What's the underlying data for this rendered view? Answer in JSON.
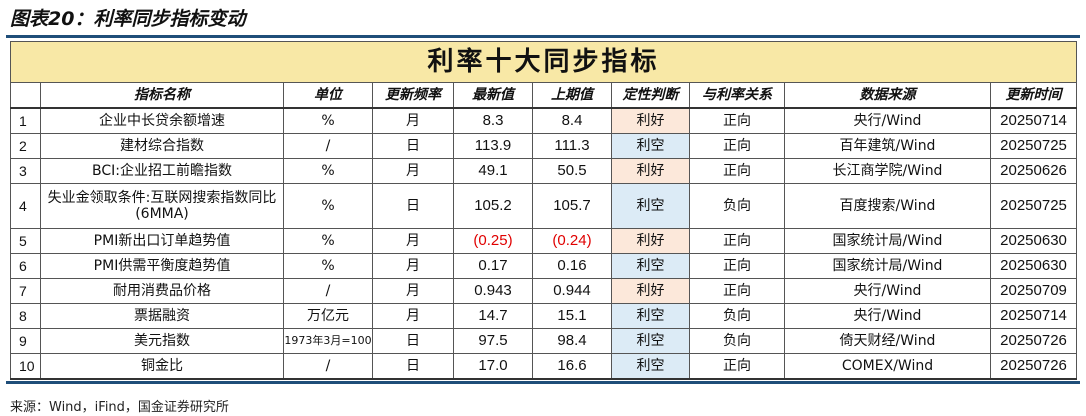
{
  "caption": "图表20：利率同步指标变动",
  "table_title": "利率十大同步指标",
  "headers": [
    "",
    "指标名称",
    "单位",
    "更新频率",
    "最新值",
    "上期值",
    "定性判断",
    "与利率关系",
    "数据来源",
    "更新时间"
  ],
  "rows": [
    {
      "idx": "1",
      "name": "企业中长贷余额增速",
      "unit": "%",
      "freq": "月",
      "latest": "8.3",
      "prev": "8.4",
      "judge": "利好",
      "rel": "正向",
      "source": "央行/Wind",
      "time": "20250714"
    },
    {
      "idx": "2",
      "name": "建材综合指数",
      "unit": "/",
      "freq": "日",
      "latest": "113.9",
      "prev": "111.3",
      "judge": "利空",
      "rel": "正向",
      "source": "百年建筑/Wind",
      "time": "20250725"
    },
    {
      "idx": "3",
      "name": "BCI:企业招工前瞻指数",
      "unit": "%",
      "freq": "月",
      "latest": "49.1",
      "prev": "50.5",
      "judge": "利好",
      "rel": "正向",
      "source": "长江商学院/Wind",
      "time": "20250626"
    },
    {
      "idx": "4",
      "name": "失业金领取条件:互联网搜索指数同比(6MMA)",
      "unit": "%",
      "freq": "日",
      "latest": "105.2",
      "prev": "105.7",
      "judge": "利空",
      "rel": "负向",
      "source": "百度搜索/Wind",
      "time": "20250725"
    },
    {
      "idx": "5",
      "name": "PMI新出口订单趋势值",
      "unit": "%",
      "freq": "月",
      "latest": "(0.25)",
      "prev": "(0.24)",
      "judge": "利好",
      "rel": "正向",
      "source": "国家统计局/Wind",
      "time": "20250630"
    },
    {
      "idx": "6",
      "name": "PMI供需平衡度趋势值",
      "unit": "%",
      "freq": "月",
      "latest": "0.17",
      "prev": "0.16",
      "judge": "利空",
      "rel": "正向",
      "source": "国家统计局/Wind",
      "time": "20250630"
    },
    {
      "idx": "7",
      "name": "耐用消费品价格",
      "unit": "/",
      "freq": "月",
      "latest": "0.943",
      "prev": "0.944",
      "judge": "利好",
      "rel": "正向",
      "source": "央行/Wind",
      "time": "20250709"
    },
    {
      "idx": "8",
      "name": "票据融资",
      "unit": "万亿元",
      "freq": "月",
      "latest": "14.7",
      "prev": "15.1",
      "judge": "利空",
      "rel": "负向",
      "source": "央行/Wind",
      "time": "20250714"
    },
    {
      "idx": "9",
      "name": "美元指数",
      "unit": "1973年3月=100",
      "freq": "日",
      "latest": "97.5",
      "prev": "98.4",
      "judge": "利空",
      "rel": "负向",
      "source": "倚天财经/Wind",
      "time": "20250726"
    },
    {
      "idx": "10",
      "name": "铜金比",
      "unit": "/",
      "freq": "日",
      "latest": "17.0",
      "prev": "16.6",
      "judge": "利空",
      "rel": "正向",
      "source": "COMEX/Wind",
      "time": "20250726"
    }
  ],
  "source_note": "来源：Wind，iFind，国金证券研究所",
  "colors": {
    "title_bg": "#f8e8a6",
    "good_bg": "#fce8da",
    "bad_bg": "#dcebf6",
    "negative_text": "#e00000",
    "rule": "#1f4e79"
  }
}
